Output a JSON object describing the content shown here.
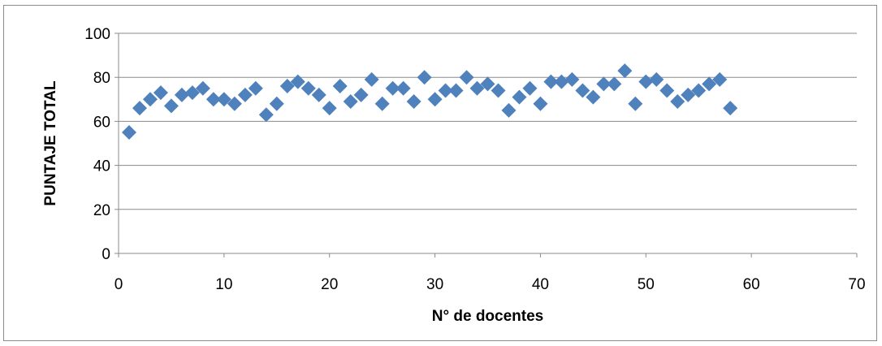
{
  "chart_data": {
    "type": "scatter",
    "title": "",
    "xlabel": "N° de docentes",
    "ylabel": "PUNTAJE TOTAL",
    "xlim": [
      0,
      70
    ],
    "ylim": [
      0,
      100
    ],
    "xticks": [
      0,
      10,
      20,
      30,
      40,
      50,
      60,
      70
    ],
    "yticks": [
      0,
      20,
      40,
      60,
      80,
      100
    ],
    "grid": "horizontal",
    "legend": "none",
    "marker": "diamond",
    "color": "#4f81bd",
    "series": [
      {
        "x": [
          1,
          2,
          3,
          4,
          5,
          6,
          7,
          8,
          9,
          10,
          11,
          12,
          13,
          14,
          15,
          16,
          17,
          18,
          19,
          20,
          21,
          22,
          23,
          24,
          25,
          26,
          27,
          28,
          29,
          30,
          31,
          32,
          33,
          34,
          35,
          36,
          37,
          38,
          39,
          40,
          41,
          42,
          43,
          44,
          45,
          46,
          47,
          48,
          49,
          50,
          51,
          52,
          53,
          54,
          55,
          56,
          57,
          58
        ],
        "y": [
          55,
          66,
          70,
          73,
          67,
          72,
          73,
          75,
          70,
          70,
          68,
          72,
          75,
          63,
          68,
          76,
          78,
          75,
          72,
          66,
          76,
          69,
          72,
          79,
          68,
          75,
          75,
          69,
          80,
          70,
          74,
          74,
          80,
          75,
          77,
          74,
          65,
          71,
          75,
          68,
          78,
          78,
          79,
          74,
          71,
          77,
          77,
          83,
          68,
          78,
          79,
          74,
          69,
          72,
          74,
          77,
          79,
          66
        ]
      }
    ]
  }
}
